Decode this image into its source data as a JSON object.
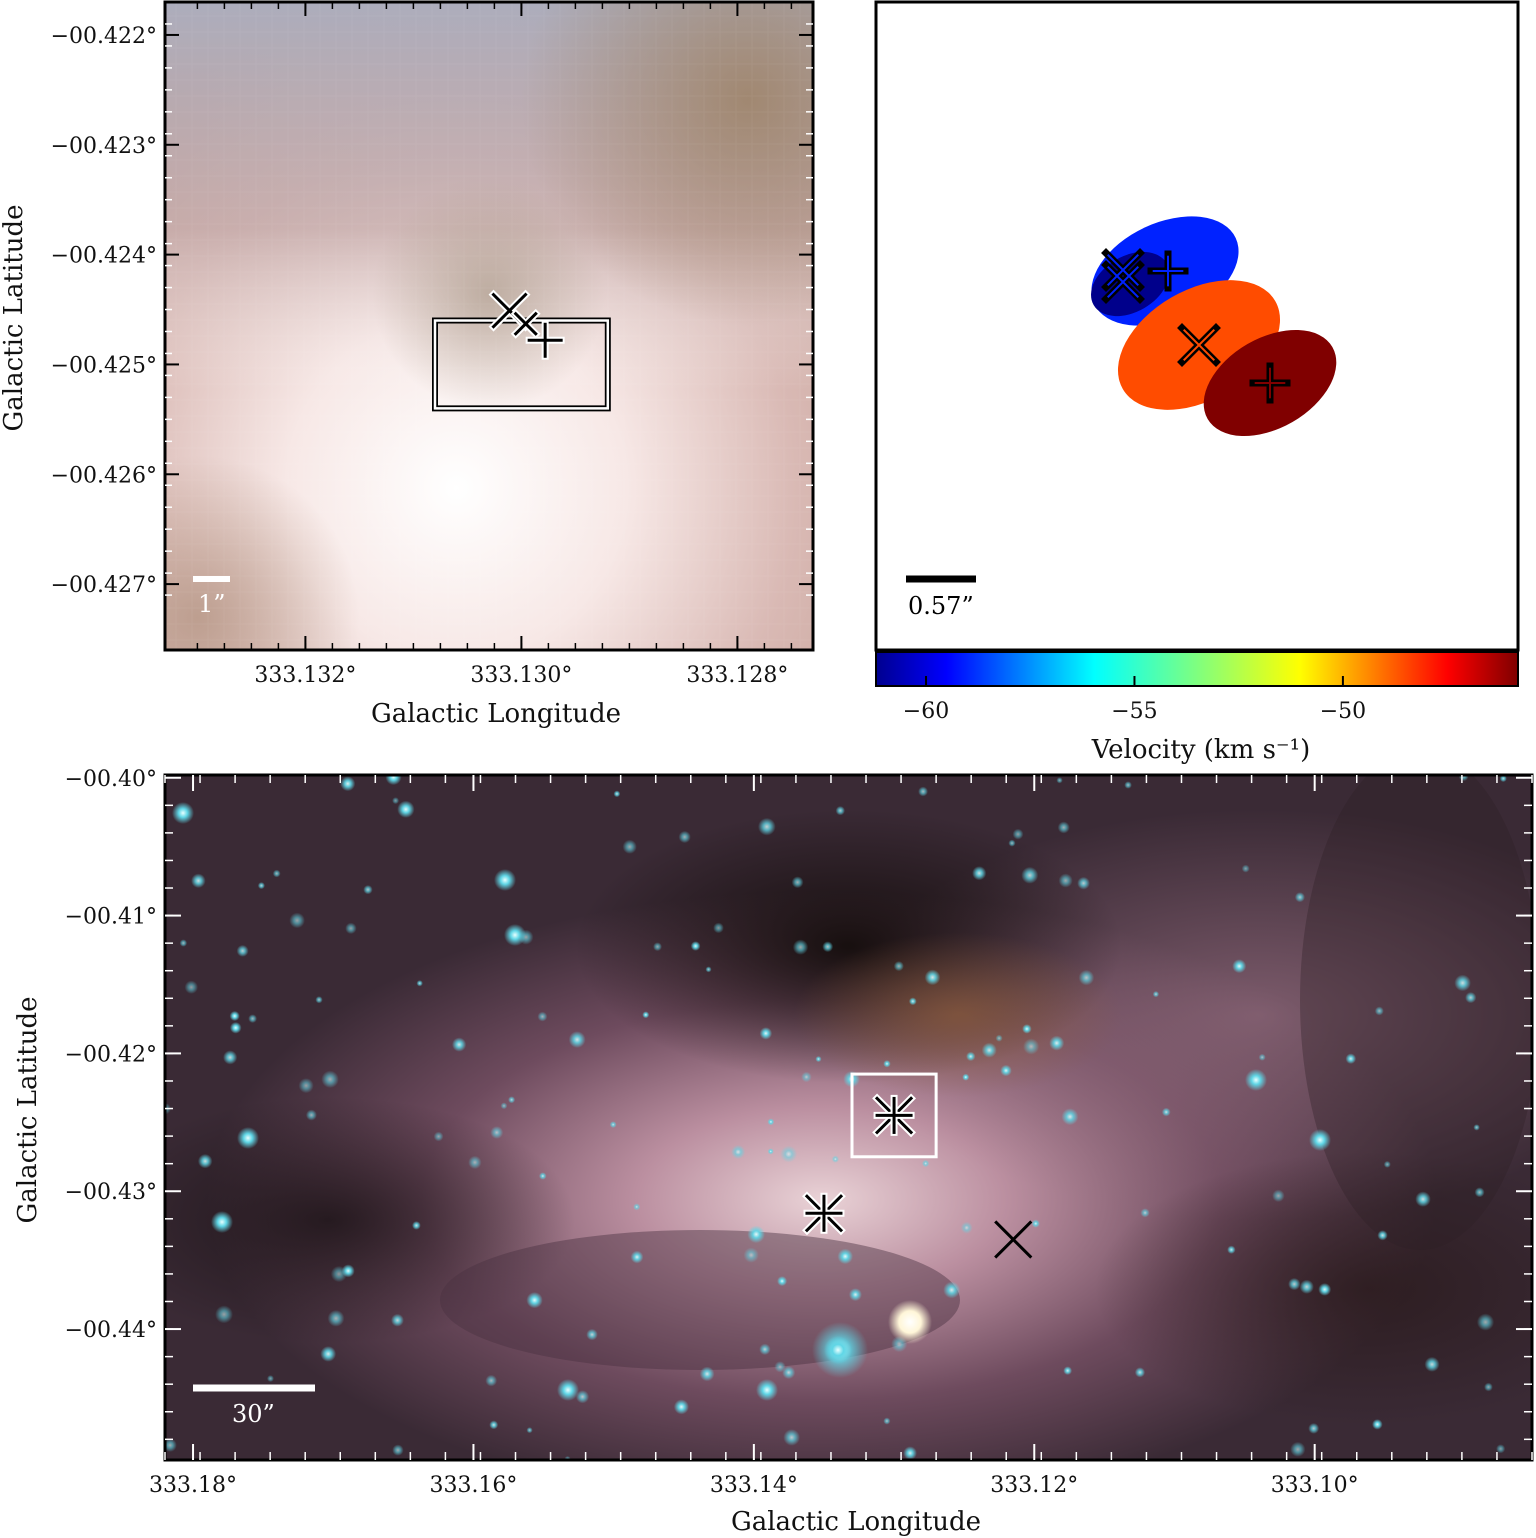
{
  "chart_data": [
    {
      "type": "image",
      "panel": "top-left",
      "xlabel": "Galactic Longitude",
      "ylabel": "Galactic Latitude",
      "x_ticks": [
        "333.132°",
        "333.130°",
        "333.128°"
      ],
      "x_tick_values": [
        333.132,
        333.13,
        333.128
      ],
      "y_ticks": [
        "−00.422°",
        "−00.423°",
        "−00.424°",
        "−00.425°",
        "−00.426°",
        "−00.427°"
      ],
      "y_tick_values": [
        -0.422,
        -0.423,
        -0.424,
        -0.425,
        -0.426,
        -0.427
      ],
      "xlim": [
        333.1333,
        333.1273
      ],
      "ylim": [
        -0.4276,
        -0.4217
      ],
      "scalebar": "1”",
      "inset_box": {
        "l": [
          333.1308,
          333.1292
        ],
        "b": [
          -0.4246,
          -0.4254
        ]
      },
      "markers": [
        {
          "symbol": "x",
          "l": 333.13011,
          "b": -0.42451
        },
        {
          "symbol": "+",
          "l": 333.12978,
          "b": -0.42478
        },
        {
          "symbol": "x",
          "l": 333.12996,
          "b": -0.42463
        }
      ]
    },
    {
      "type": "scatter",
      "panel": "top-right",
      "colorbar_label": "Velocity (km s⁻¹)",
      "colorbar_ticks": [
        "−60",
        "−55",
        "−50"
      ],
      "colorbar_range": [
        -61.2,
        -45.8
      ],
      "scalebar": "0.57”",
      "sources": [
        {
          "name": "dark-blue",
          "velocity": -61,
          "color": "#00008b",
          "markers": [
            "x"
          ]
        },
        {
          "name": "blue",
          "velocity": -60,
          "color": "#0022ff",
          "markers": [
            "x",
            "+"
          ]
        },
        {
          "name": "orange",
          "velocity": -48.5,
          "color": "#ff4c00",
          "markers": [
            "x"
          ]
        },
        {
          "name": "dark-red",
          "velocity": -46,
          "color": "#800000",
          "markers": [
            "+"
          ]
        }
      ]
    },
    {
      "type": "image",
      "panel": "bottom",
      "xlabel": "Galactic Longitude",
      "ylabel": "Galactic Latitude",
      "x_ticks": [
        "333.18°",
        "333.16°",
        "333.14°",
        "333.12°",
        "333.10°"
      ],
      "x_tick_values": [
        333.18,
        333.16,
        333.14,
        333.12,
        333.1
      ],
      "y_ticks": [
        "−00.40°",
        "−00.41°",
        "−00.42°",
        "−00.43°",
        "−00.44°"
      ],
      "y_tick_values": [
        -0.4,
        -0.41,
        -0.42,
        -0.43,
        -0.44
      ],
      "xlim": [
        333.182,
        333.0845
      ],
      "ylim": [
        -0.4495,
        -0.3998
      ],
      "scalebar": "30”",
      "inset_box": {
        "l": [
          333.133,
          333.127
        ],
        "b": [
          -0.4215,
          -0.4275
        ]
      },
      "markers": [
        {
          "symbol": "x",
          "l": 333.13,
          "b": -0.4245
        },
        {
          "symbol": "+",
          "l": 333.13,
          "b": -0.4245
        },
        {
          "symbol": "x",
          "l": 333.135,
          "b": -0.4316
        },
        {
          "symbol": "+",
          "l": 333.135,
          "b": -0.4316
        },
        {
          "symbol": "x",
          "l": 333.1215,
          "b": -0.4335
        }
      ]
    }
  ]
}
